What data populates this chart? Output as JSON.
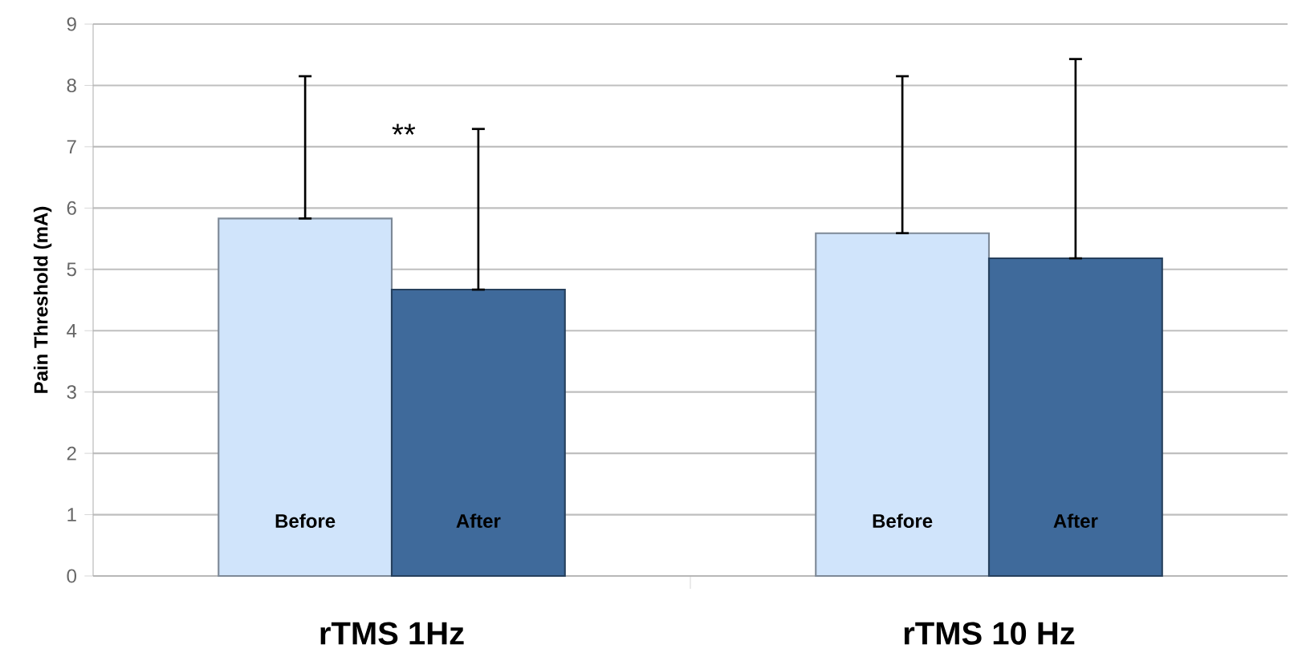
{
  "chart_data": {
    "type": "bar",
    "ylabel": "Pain Threshold (mA)",
    "categories": [
      "rTMS 1Hz",
      "rTMS 10 Hz"
    ],
    "series": [
      {
        "name": "Before",
        "color": "#d0e4fb",
        "values": [
          5.83,
          5.59
        ],
        "errors": [
          [
            5.83,
            8.15
          ],
          [
            5.59,
            8.15
          ]
        ]
      },
      {
        "name": "After",
        "color": "#3f6a9b",
        "values": [
          4.67,
          5.18
        ],
        "errors": [
          [
            4.67,
            7.29
          ],
          [
            5.18,
            8.43
          ]
        ]
      }
    ],
    "ylim": [
      0,
      9
    ],
    "yticks": [
      0,
      1,
      2,
      3,
      4,
      5,
      6,
      7,
      8,
      9
    ],
    "grid": "y",
    "legend": false,
    "annotations": [
      "**"
    ]
  }
}
